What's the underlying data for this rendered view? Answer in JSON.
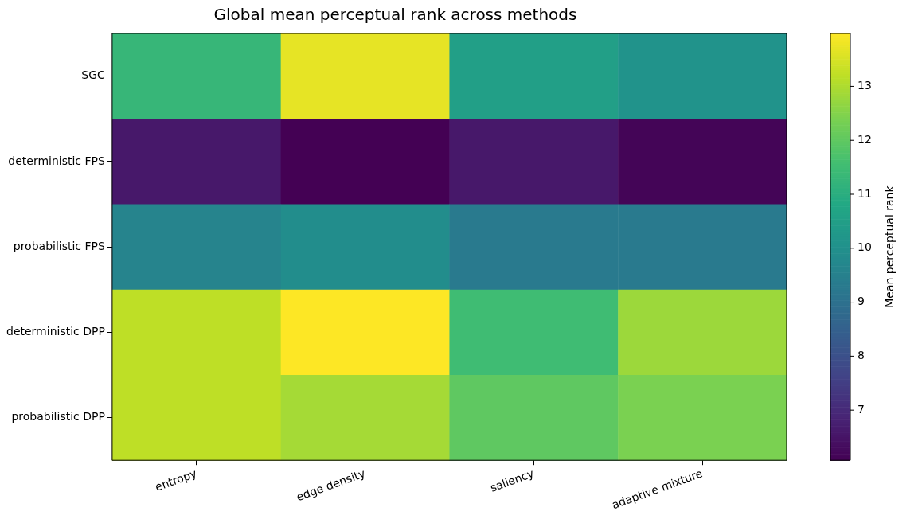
{
  "chart_data": {
    "type": "heatmap",
    "title": "Global mean perceptual rank across methods",
    "clabel": "Mean perceptual rank",
    "categories": [
      "entropy",
      "edge density",
      "saliency",
      "adaptive mixture"
    ],
    "y_categories": [
      "SGC",
      "deterministic FPS",
      "probabilistic FPS",
      "deterministic DPP",
      "probabilistic DPP"
    ],
    "cells": [
      [
        11.3,
        13.7,
        10.5,
        10.1
      ],
      [
        6.6,
        6.07,
        6.6,
        6.15
      ],
      [
        9.6,
        9.9,
        9.3,
        9.3
      ],
      [
        13.2,
        13.98,
        11.5,
        12.8
      ],
      [
        13.2,
        12.9,
        12.0,
        12.4
      ]
    ],
    "clim": [
      6.07,
      13.98
    ],
    "cticks": [
      7,
      8,
      9,
      10,
      11,
      12,
      13
    ]
  }
}
